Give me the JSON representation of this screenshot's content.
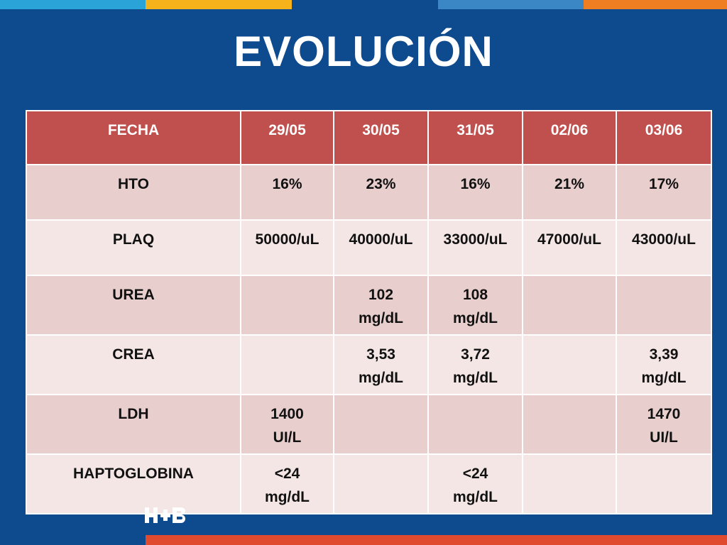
{
  "title": "EVOLUCIÓN",
  "table": {
    "headers": [
      "FECHA",
      "29/05",
      "30/05",
      "31/05",
      "02/06",
      "03/06"
    ],
    "rows": [
      [
        "HTO",
        "16%",
        "23%",
        "16%",
        "21%",
        "17%"
      ],
      [
        "PLAQ",
        "50000/uL",
        "40000/uL",
        "33000/uL",
        "47000/uL",
        "43000/uL"
      ],
      [
        "UREA",
        "",
        "102\nmg/dL",
        "108\nmg/dL",
        "",
        ""
      ],
      [
        "CREA",
        "",
        "3,53\nmg/dL",
        "3,72\nmg/dL",
        "",
        "3,39\nmg/dL"
      ],
      [
        "LDH",
        "1400\nUI/L",
        "",
        "",
        "",
        "1470\nUI/L"
      ],
      [
        "HAPTOGLOBINA",
        "<24\nmg/dL",
        "",
        "<24\nmg/dL",
        "",
        ""
      ]
    ]
  },
  "logo": {
    "text": "H+B"
  },
  "colors": {
    "background": "#0e4a8e",
    "header": "#c0504d",
    "row_odd": "#e8cfce",
    "row_even": "#f3e6e5",
    "bottom_bar": "#e04b2f"
  }
}
